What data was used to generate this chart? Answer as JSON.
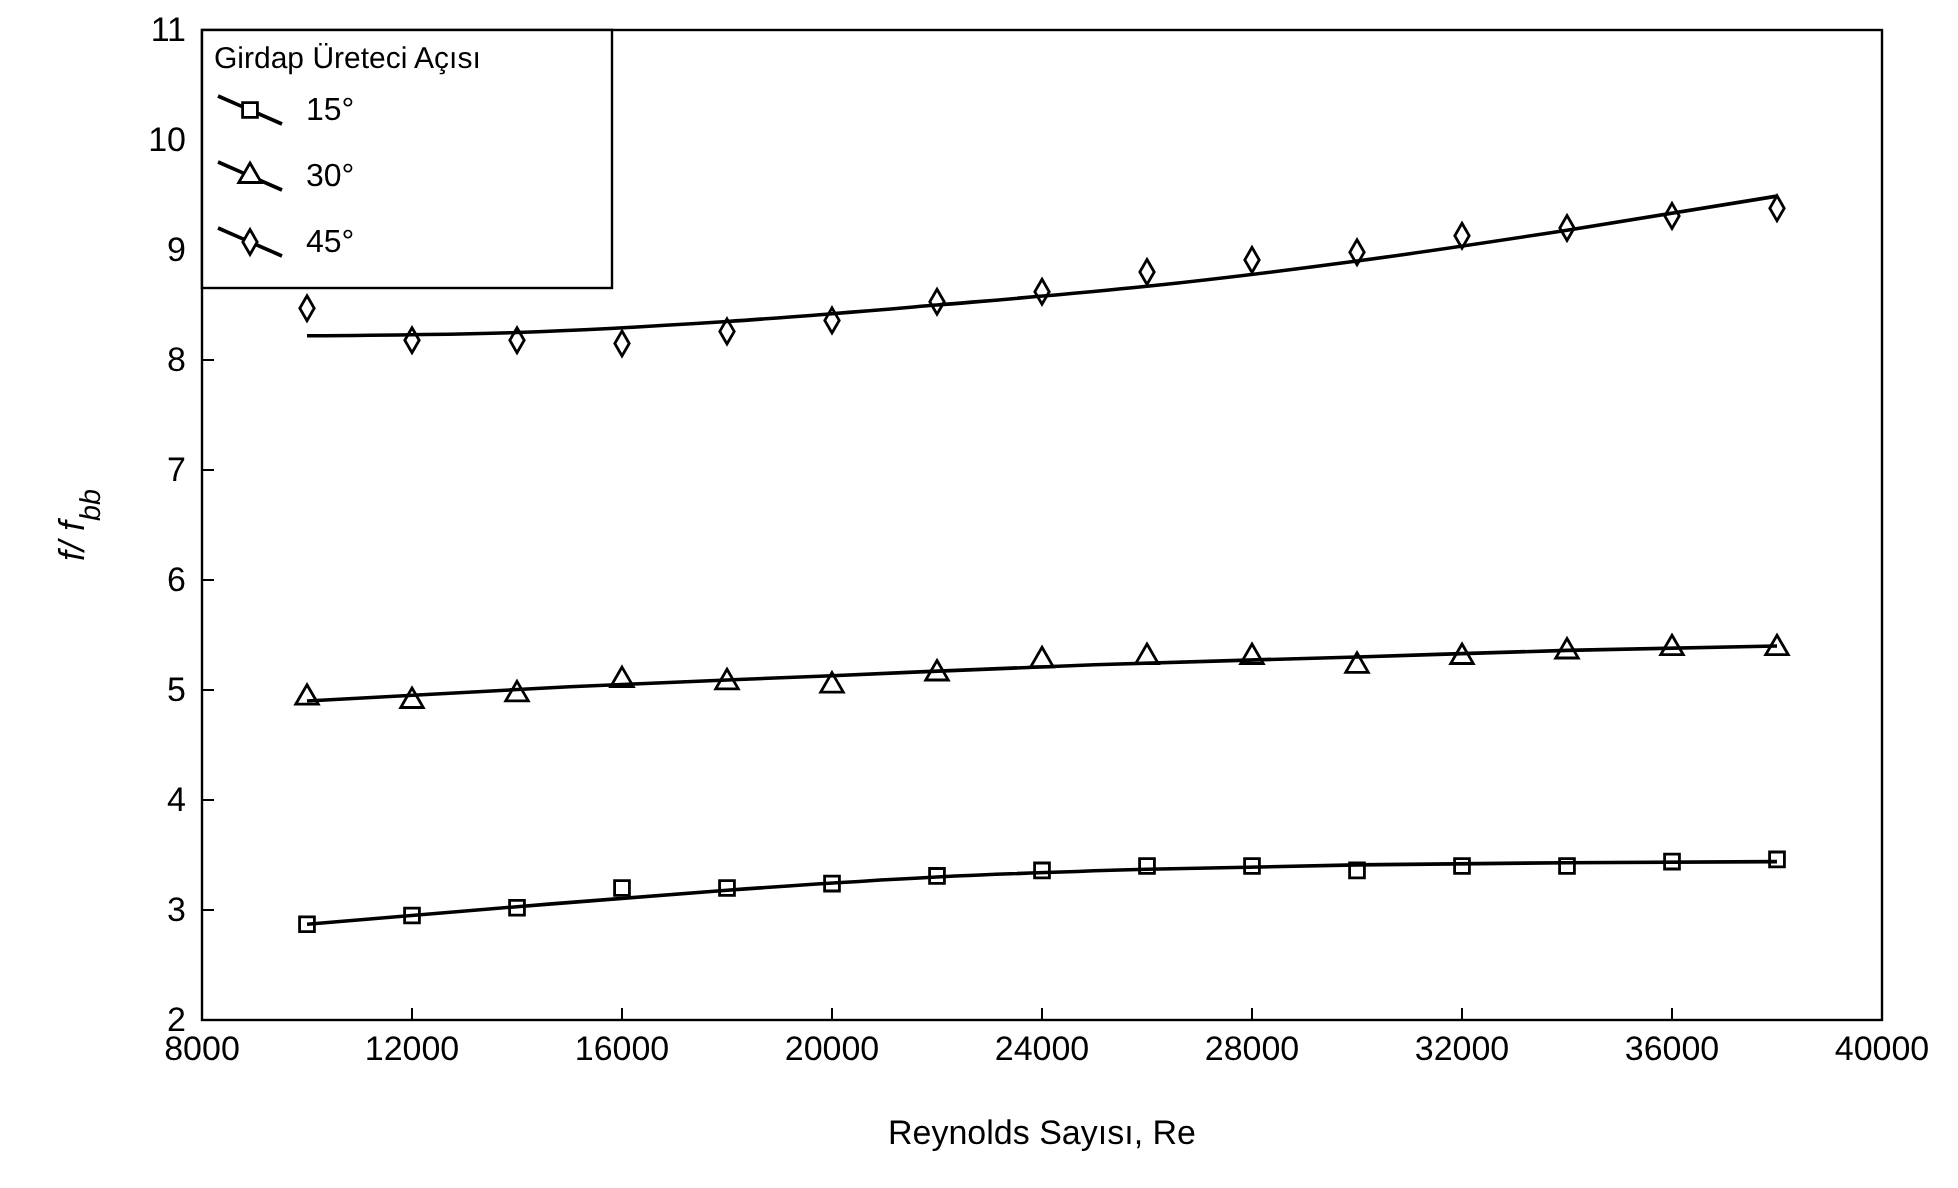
{
  "chart_data": {
    "type": "scatter",
    "xlabel": "Reynolds Sayısı, Re",
    "ylabel": "f/ f$_{bb}$",
    "legend_title": "Girdap Üreteci Açısı",
    "legend": "top left",
    "grid": false,
    "x": [
      10000,
      12000,
      14000,
      16000,
      18000,
      20000,
      22000,
      24000,
      26000,
      28000,
      30000,
      32000,
      34000,
      36000,
      38000
    ],
    "xlim": [
      8000,
      40000
    ],
    "xticks": [
      8000,
      12000,
      16000,
      20000,
      24000,
      28000,
      32000,
      36000,
      40000
    ],
    "ylim": [
      2,
      11
    ],
    "yticks": [
      2,
      3,
      4,
      5,
      6,
      7,
      8,
      9,
      10,
      11
    ],
    "series": [
      {
        "name": "15°",
        "color": "#000000",
        "marker": "square",
        "values": [
          2.87,
          2.95,
          3.02,
          3.2,
          3.2,
          3.24,
          3.31,
          3.36,
          3.4,
          3.4,
          3.36,
          3.4,
          3.4,
          3.44,
          3.46
        ]
      },
      {
        "name": "30°",
        "color": "#000000",
        "marker": "triangle",
        "values": [
          4.93,
          4.9,
          4.96,
          5.09,
          5.07,
          5.04,
          5.15,
          5.27,
          5.3,
          5.3,
          5.22,
          5.3,
          5.35,
          5.38,
          5.38
        ]
      },
      {
        "name": "45°",
        "color": "#000000",
        "marker": "diamond",
        "values": [
          8.47,
          8.18,
          8.18,
          8.15,
          8.26,
          8.36,
          8.53,
          8.62,
          8.8,
          8.91,
          8.98,
          9.13,
          9.2,
          9.31,
          9.38
        ]
      },
      {
        "type": "line",
        "color": "#000000",
        "marker": "none",
        "line_style": "solid",
        "x": [
          10000,
          14000,
          18000,
          22000,
          26000,
          30000,
          34000,
          38000
        ],
        "values": [
          2.87,
          3.03,
          3.18,
          3.3,
          3.37,
          3.41,
          3.43,
          3.44
        ]
      },
      {
        "type": "line",
        "color": "#000000",
        "marker": "none",
        "line_style": "solid",
        "x": [
          10000,
          15000,
          20000,
          25000,
          30000,
          34000,
          38000
        ],
        "values": [
          4.9,
          5.03,
          5.13,
          5.23,
          5.3,
          5.36,
          5.4
        ]
      },
      {
        "type": "line",
        "color": "#000000",
        "marker": "none",
        "line_style": "solid",
        "x": [
          10000,
          14000,
          18000,
          22000,
          26000,
          30000,
          34000,
          38000
        ],
        "values": [
          8.22,
          8.25,
          8.35,
          8.5,
          8.67,
          8.9,
          9.18,
          9.49
        ]
      }
    ]
  }
}
